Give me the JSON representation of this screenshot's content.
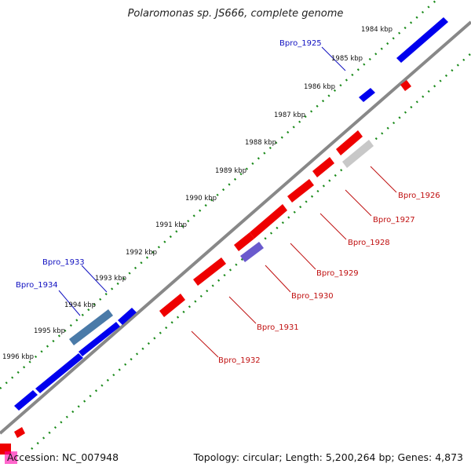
{
  "title": "Polaromonas sp. JS666, complete genome",
  "footer": {
    "accession": "Accession: NC_007948",
    "topology": "Topology: circular; Length: 5,200,264 bp; Genes: 4,873"
  },
  "colors": {
    "backbone": "#888888",
    "forward_gene": "#0000ee",
    "reverse_gene": "#ee0000",
    "forward_label": "#1010c0",
    "reverse_label": "#c01010",
    "tick_dots": "#1a8a1a"
  },
  "kbp_labels": [
    "1984 kbp",
    "1985 kbp",
    "1986 kbp",
    "1987 kbp",
    "1988 kbp",
    "1989 kbp",
    "1990 kbp",
    "1991 kbp",
    "1992 kbp",
    "1993 kbp",
    "1994 kbp",
    "1995 kbp",
    "1996 kbp"
  ],
  "forward_gene_labels": [
    "Bpro_1925",
    "Bpro_1933",
    "Bpro_1934"
  ],
  "reverse_gene_labels": [
    "Bpro_1926",
    "Bpro_1927",
    "Bpro_1928",
    "Bpro_1929",
    "Bpro_1930",
    "Bpro_1931",
    "Bpro_1932"
  ]
}
